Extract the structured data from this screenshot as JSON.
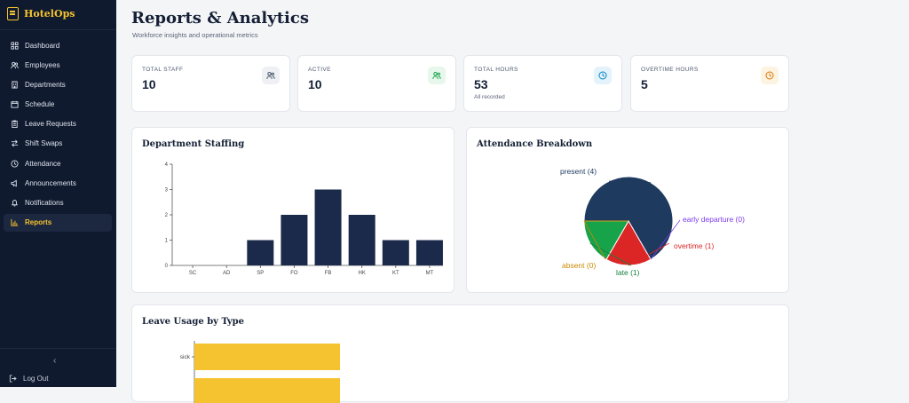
{
  "app": {
    "name": "HotelOps"
  },
  "sidebar": {
    "items": [
      {
        "label": "Dashboard",
        "icon": "dashboard-icon"
      },
      {
        "label": "Employees",
        "icon": "users-icon"
      },
      {
        "label": "Departments",
        "icon": "building-icon"
      },
      {
        "label": "Schedule",
        "icon": "calendar-icon"
      },
      {
        "label": "Leave Requests",
        "icon": "clipboard-icon"
      },
      {
        "label": "Shift Swaps",
        "icon": "swap-icon"
      },
      {
        "label": "Attendance",
        "icon": "clock-icon"
      },
      {
        "label": "Announcements",
        "icon": "megaphone-icon"
      },
      {
        "label": "Notifications",
        "icon": "bell-icon"
      },
      {
        "label": "Reports",
        "icon": "bar-chart-icon"
      }
    ],
    "active_index": 9,
    "collapse_glyph": "‹",
    "logout_label": "Log Out"
  },
  "header": {
    "title": "Reports & Analytics",
    "subtitle": "Workforce insights and operational metrics"
  },
  "stats": [
    {
      "label": "TOTAL STAFF",
      "value": "10",
      "note": "",
      "icon": "users-icon",
      "icon_color": "#475569",
      "icon_bg": "#eef0f3"
    },
    {
      "label": "ACTIVE",
      "value": "10",
      "note": "",
      "icon": "users-icon",
      "icon_color": "#16a34a",
      "icon_bg": "#e7f7ec"
    },
    {
      "label": "TOTAL HOURS",
      "value": "53",
      "note": "All recorded",
      "icon": "clock-icon",
      "icon_color": "#0284c7",
      "icon_bg": "#e4f2fb"
    },
    {
      "label": "OVERTIME HOURS",
      "value": "5",
      "note": "",
      "icon": "clock-icon",
      "icon_color": "#d97706",
      "icon_bg": "#fdf3e1"
    }
  ],
  "panels": {
    "staffing_title": "Department Staffing",
    "attendance_title": "Attendance Breakdown",
    "leave_title": "Leave Usage by Type"
  },
  "chart_data": [
    {
      "type": "bar",
      "title": "Department Staffing",
      "categories": [
        "SC",
        "AD",
        "SP",
        "FO",
        "FB",
        "HK",
        "KT",
        "MT"
      ],
      "values": [
        0,
        0,
        1,
        2,
        3,
        2,
        1,
        1
      ],
      "ylim": [
        0,
        4
      ],
      "yticks": [
        0,
        1,
        2,
        3,
        4
      ],
      "color": "#1b2a4a",
      "grid": false
    },
    {
      "type": "pie",
      "title": "Attendance Breakdown",
      "slices": [
        {
          "label": "present (4)",
          "value": 4,
          "color": "#1e3a5f",
          "label_color": "#1e3a5f"
        },
        {
          "label": "early departure (0)",
          "value": 0,
          "color": "#8b5cf6",
          "label_color": "#7c3aed"
        },
        {
          "label": "overtime (1)",
          "value": 1,
          "color": "#dc2626",
          "label_color": "#dc2626"
        },
        {
          "label": "late (1)",
          "value": 1,
          "color": "#16a34a",
          "label_color": "#15803d"
        },
        {
          "label": "absent (0)",
          "value": 0,
          "color": "#d4a017",
          "label_color": "#ca8a04"
        }
      ]
    },
    {
      "type": "bar",
      "orientation": "horizontal",
      "title": "Leave Usage by Type",
      "categories": [
        "sick"
      ],
      "values": [
        null
      ],
      "color": "#f5c32f"
    }
  ]
}
